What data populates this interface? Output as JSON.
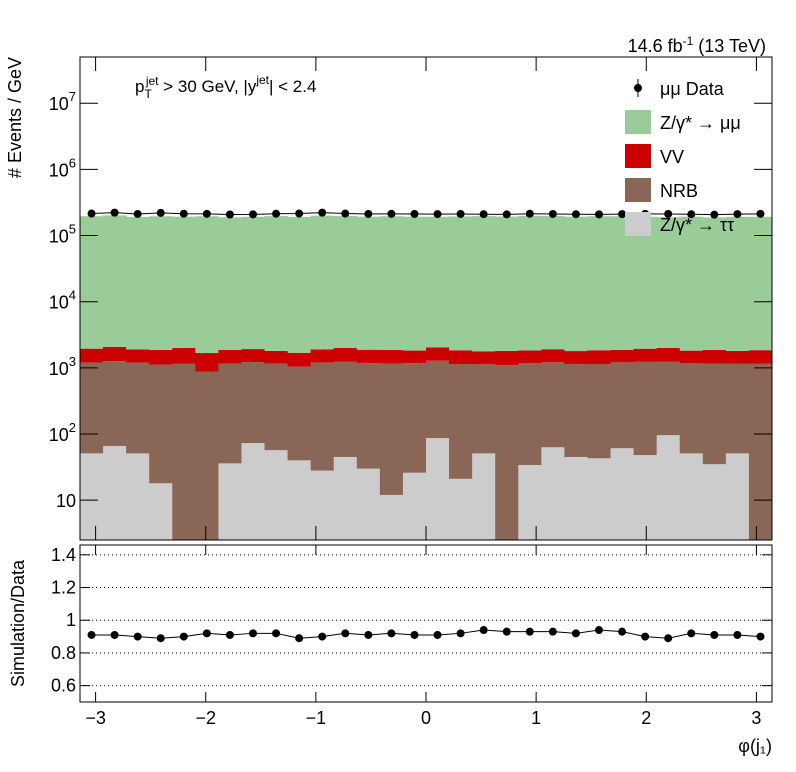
{
  "chart_data": [
    {
      "type": "histogram",
      "lumi": [
        "14.6 fb",
        "-1",
        " (13 TeV)"
      ],
      "annotation": [
        "p",
        "T",
        "jet",
        " > 30 GeV,  |y",
        "jet",
        "| < 2.4"
      ],
      "ylabel": "# Events / GeV",
      "bins": [
        -3.1416,
        -2.9322,
        -2.7227,
        -2.5133,
        -2.3038,
        -2.0944,
        -1.885,
        -1.6755,
        -1.4661,
        -1.2566,
        -1.0472,
        -0.8378,
        -0.6283,
        -0.4189,
        -0.2094,
        0,
        0.2094,
        0.4189,
        0.6283,
        0.8378,
        1.0472,
        1.2566,
        1.4661,
        1.6755,
        1.885,
        2.0944,
        2.3038,
        2.5133,
        2.7227,
        2.9322,
        3.1416
      ],
      "series": [
        {
          "name": "Z/γ* → ττ",
          "color": "#cccccc",
          "values": [
            51,
            66,
            51,
            18,
            0,
            0,
            36,
            73,
            57,
            40,
            28,
            45,
            30,
            12,
            26,
            87,
            21,
            51,
            0,
            34,
            63,
            45,
            43,
            61,
            48,
            96,
            51,
            35,
            51,
            0
          ]
        },
        {
          "name": "NRB",
          "color": "#896656",
          "values": [
            1150,
            1200,
            1150,
            1100,
            1150,
            880,
            1130,
            1150,
            1100,
            1000,
            1180,
            1200,
            1150,
            1150,
            1150,
            1200,
            1120,
            1080,
            1100,
            1150,
            1150,
            1100,
            1100,
            1150,
            1200,
            1150,
            1120,
            1130,
            1100,
            1150
          ]
        },
        {
          "name": "VV",
          "color": "#cc0000",
          "values": [
            750,
            800,
            700,
            750,
            850,
            800,
            700,
            700,
            650,
            650,
            700,
            750,
            700,
            700,
            650,
            750,
            700,
            650,
            700,
            650,
            700,
            650,
            700,
            650,
            700,
            750,
            650,
            700,
            650,
            700
          ]
        },
        {
          "name": "Z/γ* → μμ",
          "color": "#99cc99",
          "values": [
            194000,
            200000,
            189000,
            194000,
            191000,
            194000,
            187000,
            190000,
            195000,
            189000,
            198000,
            196000,
            191000,
            194000,
            191000,
            190000,
            193000,
            195000,
            192000,
            197000,
            195000,
            191000,
            194000,
            194000,
            190000,
            187000,
            191000,
            186000,
            190000,
            190000
          ]
        }
      ],
      "data_series": {
        "name": "μμ Data",
        "color": "#000000",
        "values": [
          215000,
          222000,
          212000,
          220000,
          214000,
          213000,
          208000,
          209000,
          214000,
          215000,
          222000,
          215000,
          212000,
          213000,
          212000,
          211000,
          212000,
          210000,
          209000,
          214000,
          212000,
          210000,
          209000,
          211000,
          213000,
          212000,
          210000,
          207000,
          211000,
          213000
        ]
      },
      "log_y": true,
      "xlim": [
        -3.1416,
        3.1416
      ],
      "ylim": [
        2.5,
        50000000
      ],
      "xticks": [
        -3,
        -2,
        -1,
        0,
        1,
        2,
        3
      ],
      "yticks": [
        10,
        {
          "value": 100,
          "label": "10",
          "exp": "2"
        },
        {
          "value": 1000,
          "label": "10",
          "exp": "3"
        },
        {
          "value": 10000,
          "label": "10",
          "exp": "4"
        },
        {
          "value": 100000,
          "label": "10",
          "exp": "5"
        },
        {
          "value": 1000000,
          "label": "10",
          "exp": "6"
        },
        {
          "value": 10000000,
          "label": "10",
          "exp": "7"
        }
      ],
      "legend": "upper right"
    },
    {
      "type": "scatter",
      "ylabel": "Simulation/Data",
      "xlabel": "φ(j₁)",
      "x": [
        -3.0369,
        -2.8274,
        -2.618,
        -2.4086,
        -2.1991,
        -1.9897,
        -1.7802,
        -1.5708,
        -1.3614,
        -1.1519,
        -0.9425,
        -0.733,
        -0.5236,
        -0.3142,
        -0.1047,
        0.1047,
        0.3142,
        0.5236,
        0.733,
        0.9425,
        1.1519,
        1.3614,
        1.5708,
        1.7802,
        1.9897,
        2.1991,
        2.4086,
        2.618,
        2.8274,
        3.0369
      ],
      "values": [
        0.91,
        0.91,
        0.9,
        0.89,
        0.9,
        0.92,
        0.91,
        0.92,
        0.92,
        0.89,
        0.9,
        0.92,
        0.91,
        0.92,
        0.91,
        0.91,
        0.92,
        0.94,
        0.93,
        0.93,
        0.93,
        0.92,
        0.94,
        0.93,
        0.9,
        0.89,
        0.92,
        0.91,
        0.91,
        0.9
      ],
      "color": "#000000",
      "xlim": [
        -3.1416,
        3.1416
      ],
      "ylim": [
        0.5,
        1.46
      ],
      "xticks": [
        {
          "value": -3,
          "label": "−3"
        },
        {
          "value": -2,
          "label": "−2"
        },
        {
          "value": -1,
          "label": "−1"
        },
        0,
        1,
        2,
        3
      ],
      "yticks": [
        0.6,
        0.8,
        1,
        1.2,
        1.4
      ],
      "grid": true
    }
  ]
}
